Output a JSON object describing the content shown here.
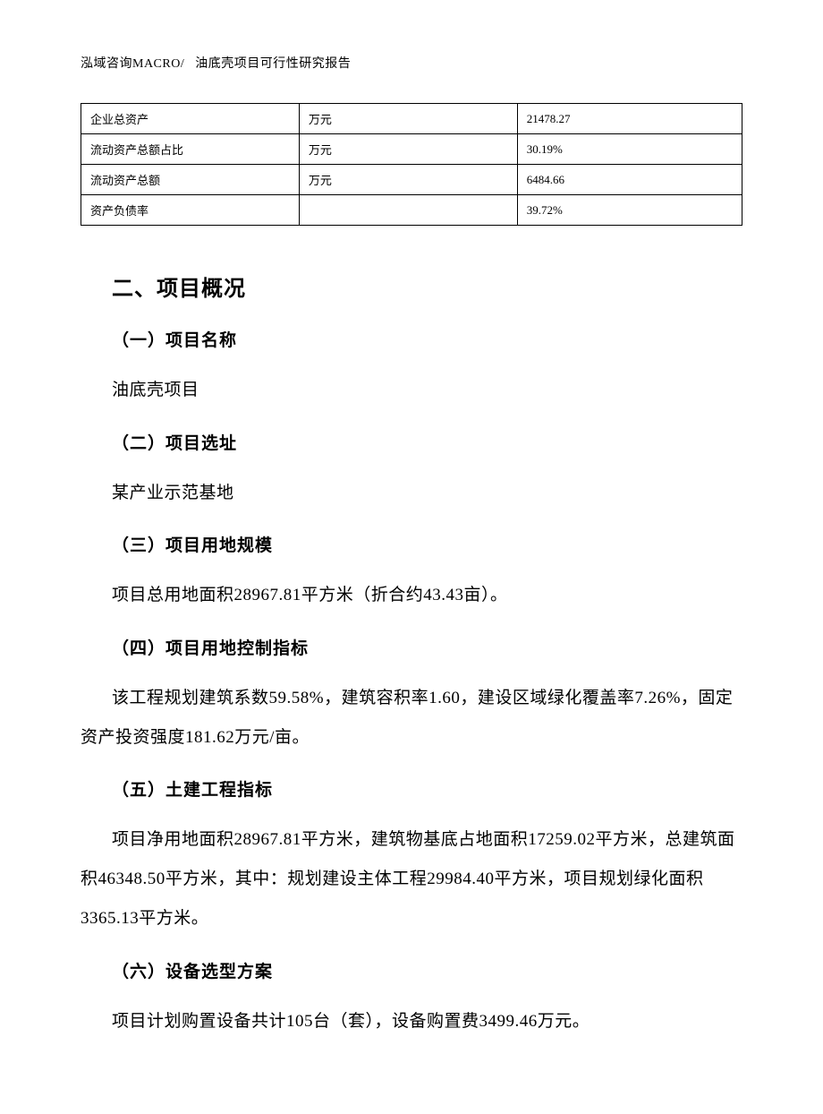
{
  "header": {
    "company": "泓域咨询MACRO/",
    "title": "油底壳项目可行性研究报告"
  },
  "table": {
    "rows": [
      {
        "label": "企业总资产",
        "unit": "万元",
        "value": "21478.27"
      },
      {
        "label": "流动资产总额占比",
        "unit": "万元",
        "value": "30.19%"
      },
      {
        "label": "流动资产总额",
        "unit": "万元",
        "value": "6484.66"
      },
      {
        "label": "资产负债率",
        "unit": "",
        "value": "39.72%"
      }
    ]
  },
  "sections": {
    "main_title": "二、项目概况",
    "s1": {
      "title": "（一）项目名称",
      "text": "油底壳项目"
    },
    "s2": {
      "title": "（二）项目选址",
      "text": "某产业示范基地"
    },
    "s3": {
      "title": "（三）项目用地规模",
      "text": "项目总用地面积28967.81平方米（折合约43.43亩）。"
    },
    "s4": {
      "title": "（四）项目用地控制指标",
      "text": "该工程规划建筑系数59.58%，建筑容积率1.60，建设区域绿化覆盖率7.26%，固定资产投资强度181.62万元/亩。"
    },
    "s5": {
      "title": "（五）土建工程指标",
      "text": "项目净用地面积28967.81平方米，建筑物基底占地面积17259.02平方米，总建筑面积46348.50平方米，其中：规划建设主体工程29984.40平方米，项目规划绿化面积3365.13平方米。"
    },
    "s6": {
      "title": "（六）设备选型方案",
      "text": "项目计划购置设备共计105台（套），设备购置费3499.46万元。"
    }
  }
}
